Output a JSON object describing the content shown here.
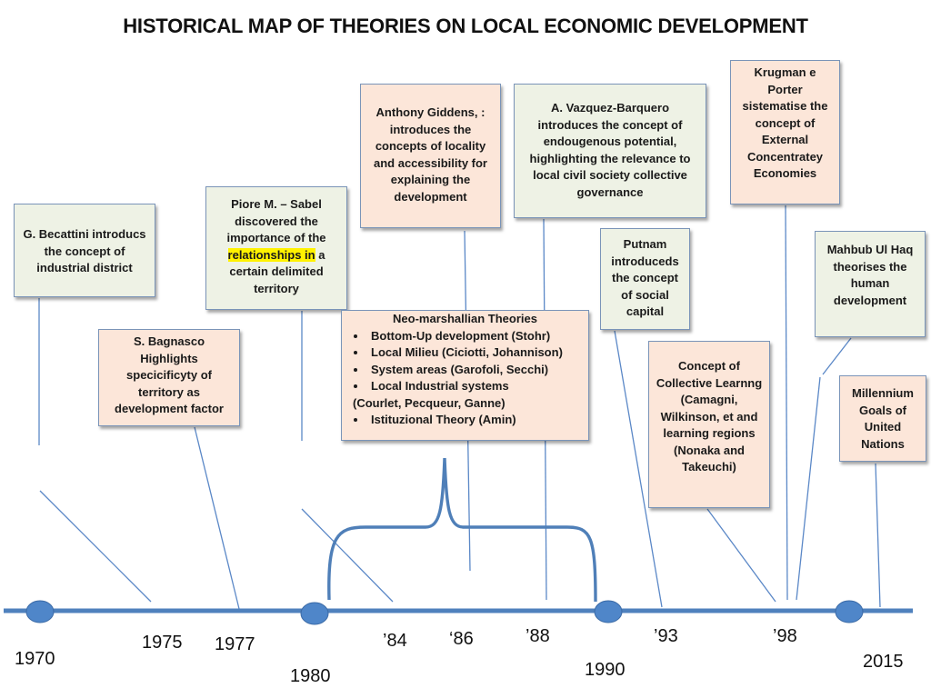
{
  "title": "HISTORICAL MAP OF THEORIES ON LOCAL ECONOMIC DEVELOPMENT",
  "colors": {
    "axis": "#4f81bd",
    "dot": "#4f86c9",
    "box_green": "#eef2e5",
    "box_peach": "#fce6d9",
    "highlight": "#fff200"
  },
  "boxes": {
    "becattini": {
      "text": "G. Becattini introducs the concept of industrial district"
    },
    "bagnasco": {
      "text": "S. Bagnasco Highlights specicificyty of territory as development factor"
    },
    "piore": {
      "before": "Piore M. – Sabel discovered the importance of the ",
      "highlight": "relationships in",
      "after": " a certain delimited territory"
    },
    "giddens": {
      "text": "Anthony Giddens, : introduces the concepts of locality and accessibility for explaining the development"
    },
    "neo": {
      "title": "Neo-marshallian Theories",
      "item1": "Bottom-Up development (Stohr)",
      "item2": "Local Milieu (Ciciotti, Johannison)",
      "item3": "System areas (Garofoli, Secchi)",
      "item4": "Local Industrial systems",
      "item4b": "(Courlet, Pecqueur, Ganne)",
      "item5": "Istituzional Theory (Amin)"
    },
    "vazquez": {
      "text": "A. Vazquez-Barquero introduces the concept of endougenous potential, highlighting the relevance to local civil society collective governance"
    },
    "putnam": {
      "text": "Putnam introduceds the concept of social capital"
    },
    "camagni": {
      "text": "Concept of Collective Learnng (Camagni, Wilkinson, et and learning regions (Nonaka and Takeuchi)"
    },
    "krugman": {
      "text": "Krugman e Porter sistematise the concept of External Concentratey Economies"
    },
    "haq": {
      "text": "Mahbub Ul Haq theorises the human development"
    },
    "mdg": {
      "text": "Millennium Goals of United Nations"
    }
  },
  "timeline_labels": {
    "y1970": "1970",
    "y1975": "1975",
    "y1977": "1977",
    "y1980": "1980",
    "y84": "’84",
    "y86": "‘86",
    "y88": "’88",
    "y1990": "1990",
    "y93": "’93",
    "y98": "’98",
    "y2015": "2015"
  }
}
